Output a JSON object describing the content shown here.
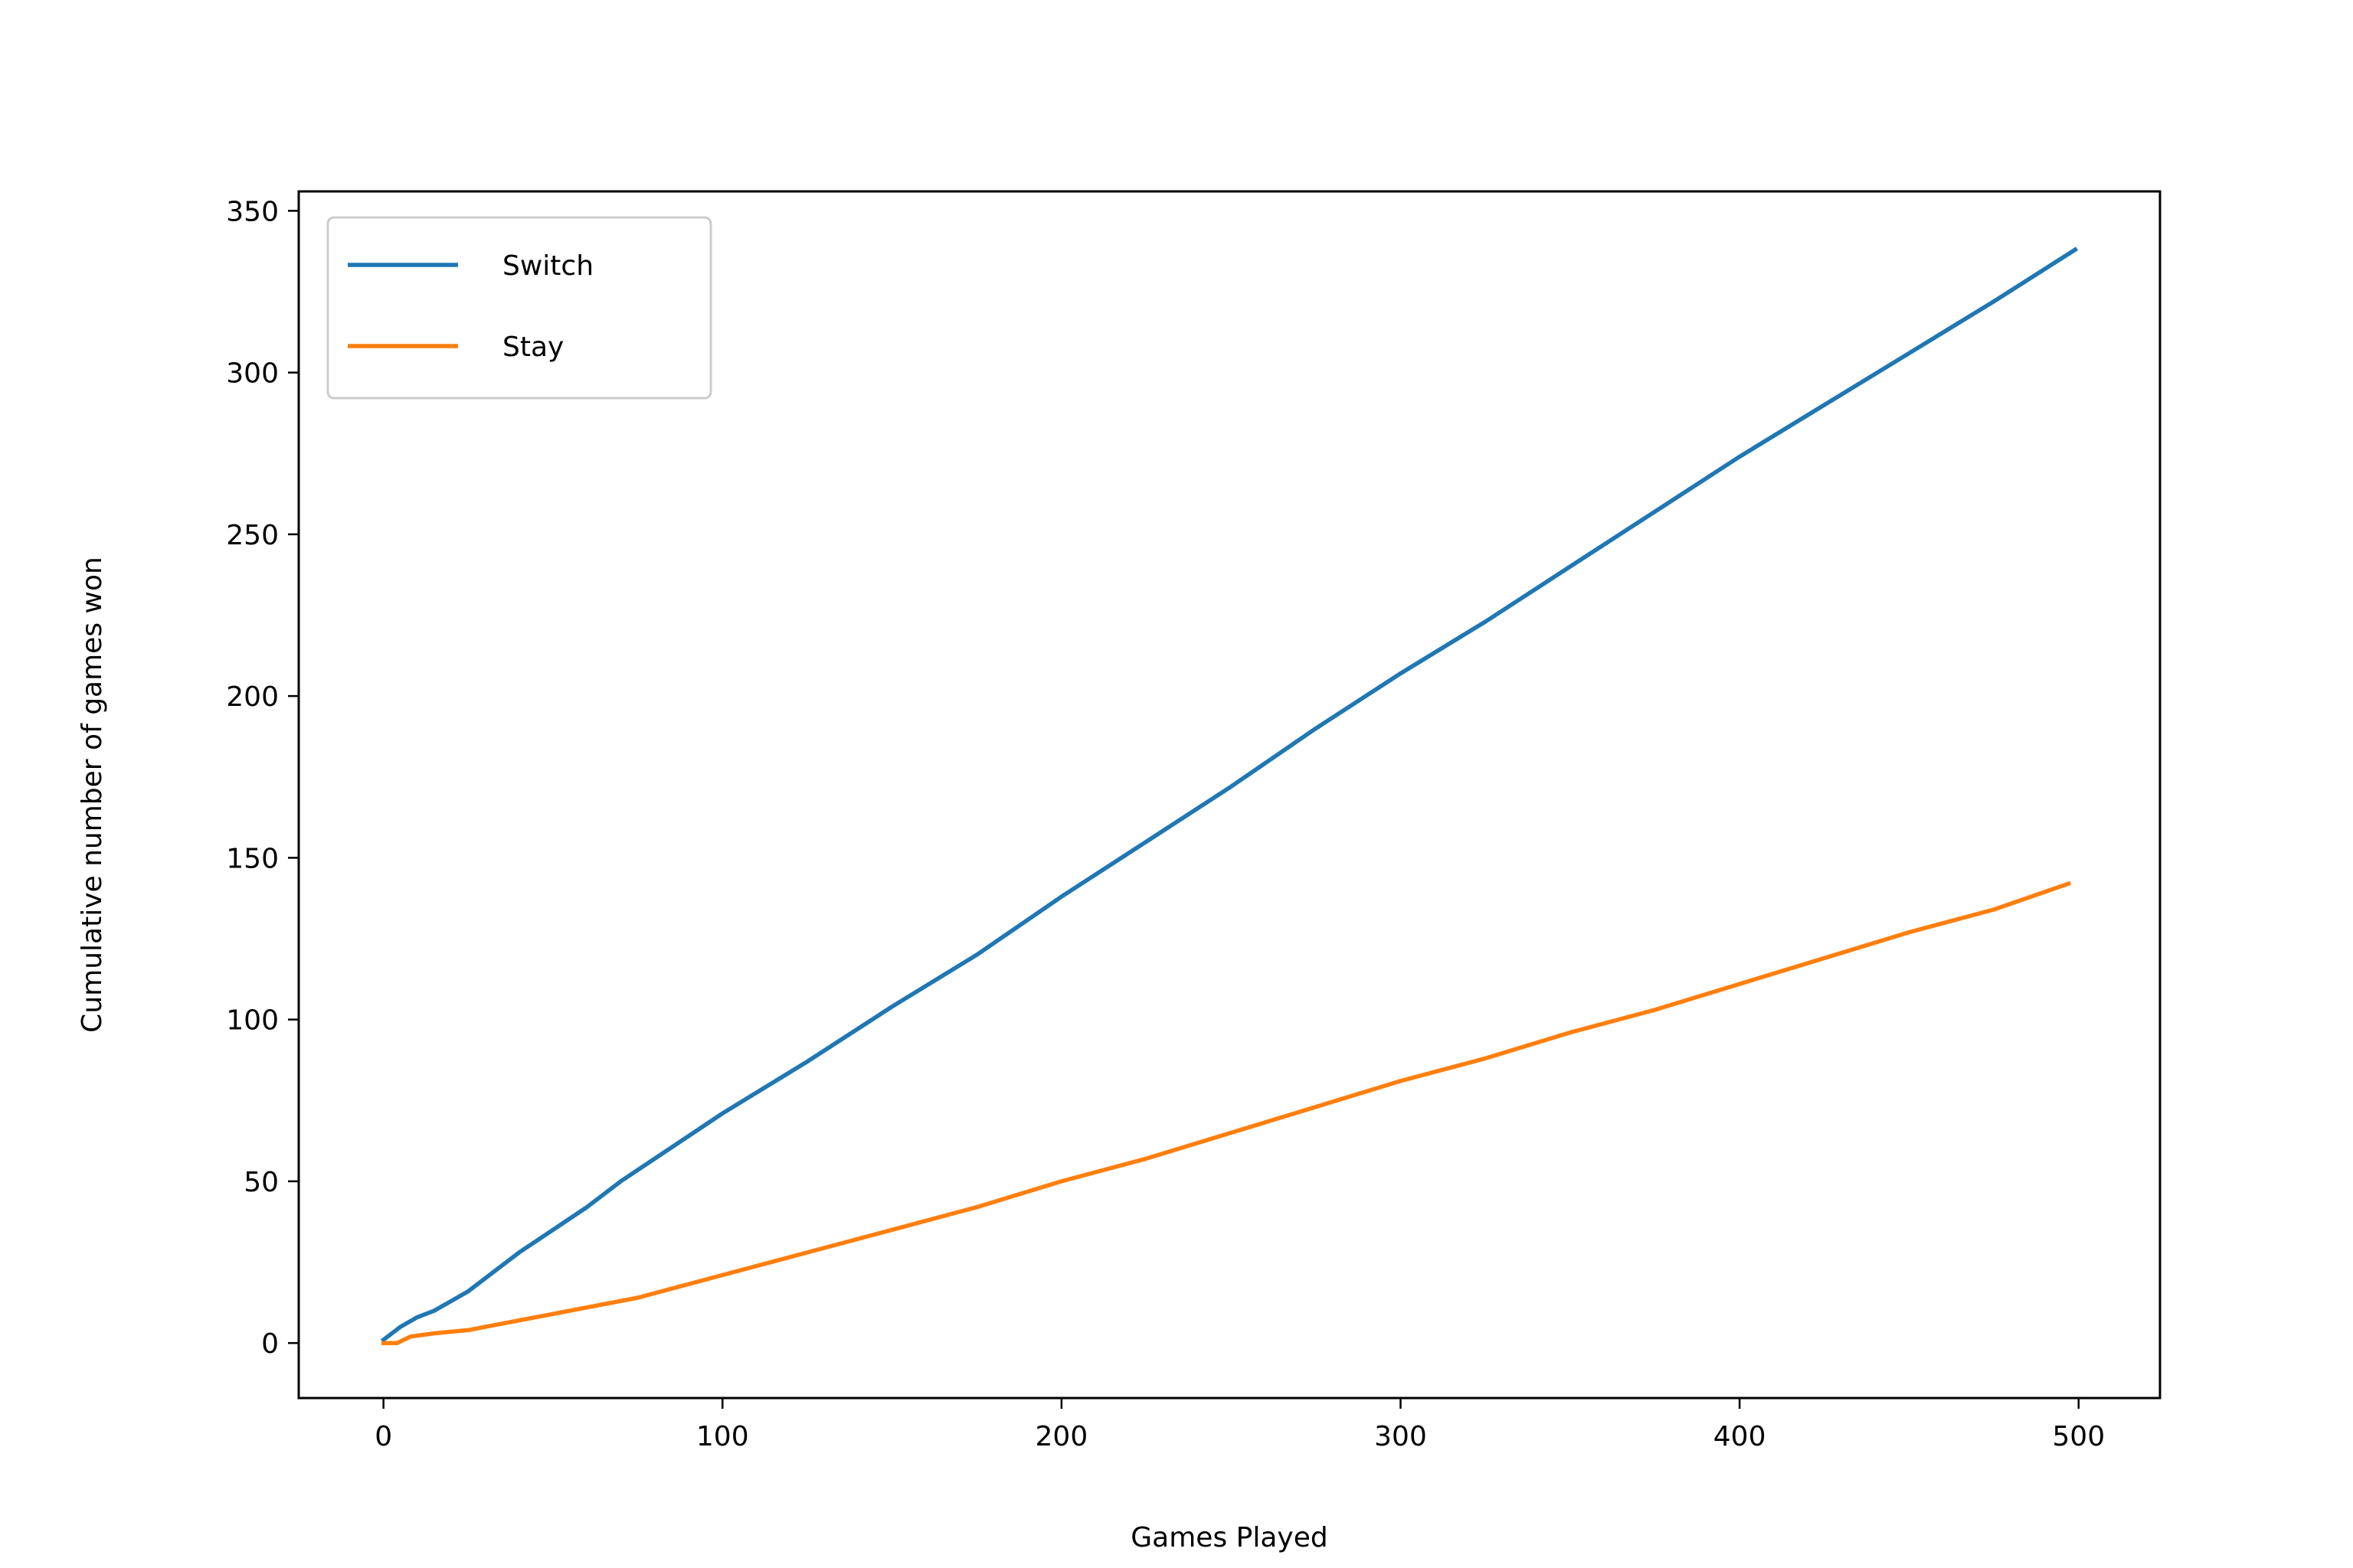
{
  "chart_data": {
    "type": "line",
    "title": "",
    "xlabel": "Games Played",
    "ylabel": "Cumulative number of games won",
    "xlim": [
      -25,
      524
    ],
    "ylim": [
      -17,
      356
    ],
    "xticks": [
      0,
      100,
      200,
      300,
      400,
      500
    ],
    "yticks": [
      0,
      50,
      100,
      150,
      200,
      250,
      300,
      350
    ],
    "grid": false,
    "legend_position": "top-left",
    "series": [
      {
        "name": "Switch",
        "color": "#1f77b4",
        "points": [
          [
            0,
            1
          ],
          [
            5,
            5
          ],
          [
            10,
            8
          ],
          [
            15,
            10
          ],
          [
            20,
            13
          ],
          [
            25,
            16
          ],
          [
            30,
            20
          ],
          [
            40,
            28
          ],
          [
            50,
            35
          ],
          [
            60,
            42
          ],
          [
            70,
            50
          ],
          [
            80,
            57
          ],
          [
            90,
            64
          ],
          [
            100,
            71
          ],
          [
            125,
            87
          ],
          [
            150,
            104
          ],
          [
            175,
            120
          ],
          [
            200,
            138
          ],
          [
            225,
            155
          ],
          [
            250,
            172
          ],
          [
            275,
            190
          ],
          [
            300,
            207
          ],
          [
            325,
            223
          ],
          [
            350,
            240
          ],
          [
            375,
            257
          ],
          [
            400,
            274
          ],
          [
            425,
            290
          ],
          [
            450,
            306
          ],
          [
            475,
            322
          ],
          [
            499,
            338
          ]
        ]
      },
      {
        "name": "Stay",
        "color": "#ff7f0e",
        "points": [
          [
            0,
            0
          ],
          [
            4,
            0
          ],
          [
            8,
            2
          ],
          [
            15,
            3
          ],
          [
            25,
            4
          ],
          [
            35,
            6
          ],
          [
            45,
            8
          ],
          [
            60,
            11
          ],
          [
            75,
            14
          ],
          [
            100,
            21
          ],
          [
            125,
            28
          ],
          [
            150,
            35
          ],
          [
            175,
            42
          ],
          [
            200,
            50
          ],
          [
            225,
            57
          ],
          [
            250,
            65
          ],
          [
            275,
            73
          ],
          [
            300,
            81
          ],
          [
            325,
            88
          ],
          [
            350,
            96
          ],
          [
            375,
            103
          ],
          [
            400,
            111
          ],
          [
            425,
            119
          ],
          [
            450,
            127
          ],
          [
            475,
            134
          ],
          [
            497,
            142
          ]
        ]
      }
    ]
  }
}
